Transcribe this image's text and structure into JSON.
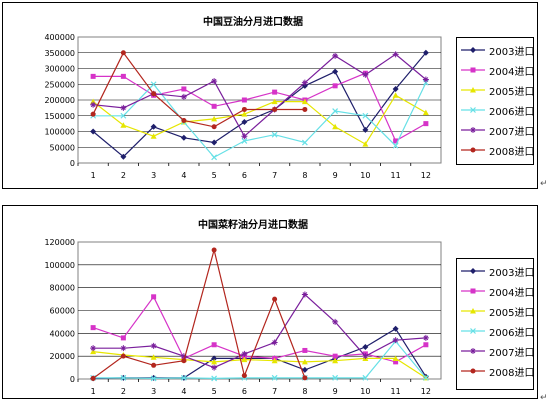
{
  "colors": {
    "2003": "#1f1f6b",
    "2004": "#d633c8",
    "2005": "#e6e600",
    "2006": "#66e0e6",
    "2007": "#7a1f9c",
    "2008": "#b3261e"
  },
  "chart_data": [
    {
      "type": "line",
      "title": "中国豆油分月进口数据",
      "categories": [
        "1",
        "2",
        "3",
        "4",
        "5",
        "6",
        "7",
        "8",
        "9",
        "10",
        "11",
        "12"
      ],
      "ylim": [
        0,
        400000
      ],
      "yticks": [
        "0",
        "50000",
        "100000",
        "150000",
        "200000",
        "250000",
        "300000",
        "350000",
        "400000"
      ],
      "grid": true,
      "legend": "right",
      "series": [
        {
          "name": "2003进口",
          "key": "2003",
          "values": [
            100000,
            20000,
            115000,
            80000,
            65000,
            130000,
            170000,
            245000,
            290000,
            105000,
            235000,
            350000
          ]
        },
        {
          "name": "2004进口",
          "key": "2004",
          "values": [
            275000,
            275000,
            215000,
            235000,
            180000,
            200000,
            225000,
            200000,
            245000,
            285000,
            70000,
            125000
          ]
        },
        {
          "name": "2005进口",
          "key": "2005",
          "values": [
            195000,
            120000,
            85000,
            130000,
            140000,
            155000,
            195000,
            195000,
            115000,
            60000,
            215000,
            160000
          ]
        },
        {
          "name": "2006进口",
          "key": "2006",
          "values": [
            150000,
            150000,
            250000,
            130000,
            18000,
            70000,
            90000,
            65000,
            165000,
            150000,
            55000,
            255000
          ]
        },
        {
          "name": "2007进口",
          "key": "2007",
          "values": [
            185000,
            175000,
            220000,
            210000,
            260000,
            85000,
            170000,
            255000,
            340000,
            280000,
            345000,
            265000
          ]
        },
        {
          "name": "2008进口",
          "key": "2008",
          "values": [
            155000,
            350000,
            220000,
            135000,
            115000,
            170000,
            170000,
            170000,
            null,
            null,
            null,
            null
          ]
        }
      ]
    },
    {
      "type": "line",
      "title": "中国菜籽油分月进口数据",
      "categories": [
        "1",
        "2",
        "3",
        "4",
        "5",
        "6",
        "7",
        "8",
        "9",
        "10",
        "11",
        "12"
      ],
      "ylim": [
        0,
        120000
      ],
      "yticks": [
        "0",
        "20000",
        "40000",
        "60000",
        "80000",
        "100000",
        "120000"
      ],
      "grid": true,
      "legend": "right",
      "series": [
        {
          "name": "2003进口",
          "key": "2003",
          "values": [
            500,
            1000,
            1000,
            1000,
            18000,
            18000,
            18000,
            8000,
            18000,
            28000,
            44000,
            2000
          ]
        },
        {
          "name": "2004进口",
          "key": "2004",
          "values": [
            45000,
            36000,
            72000,
            18000,
            30000,
            20000,
            18000,
            25000,
            20000,
            22000,
            15000,
            30000
          ]
        },
        {
          "name": "2005进口",
          "key": "2005",
          "values": [
            24000,
            21000,
            19000,
            17000,
            15000,
            17000,
            16000,
            15000,
            16000,
            18000,
            18000,
            1000
          ]
        },
        {
          "name": "2006进口",
          "key": "2006",
          "values": [
            1000,
            1000,
            500,
            1000,
            500,
            1000,
            1000,
            1000,
            1000,
            1000,
            33000,
            1000
          ]
        },
        {
          "name": "2007进口",
          "key": "2007",
          "values": [
            27000,
            27000,
            29000,
            20000,
            10000,
            22000,
            32000,
            74000,
            50000,
            20000,
            34000,
            36000
          ]
        },
        {
          "name": "2008进口",
          "key": "2008",
          "values": [
            500,
            20000,
            12000,
            16000,
            113000,
            3000,
            70000,
            1000,
            null,
            null,
            null,
            null
          ]
        }
      ]
    }
  ]
}
